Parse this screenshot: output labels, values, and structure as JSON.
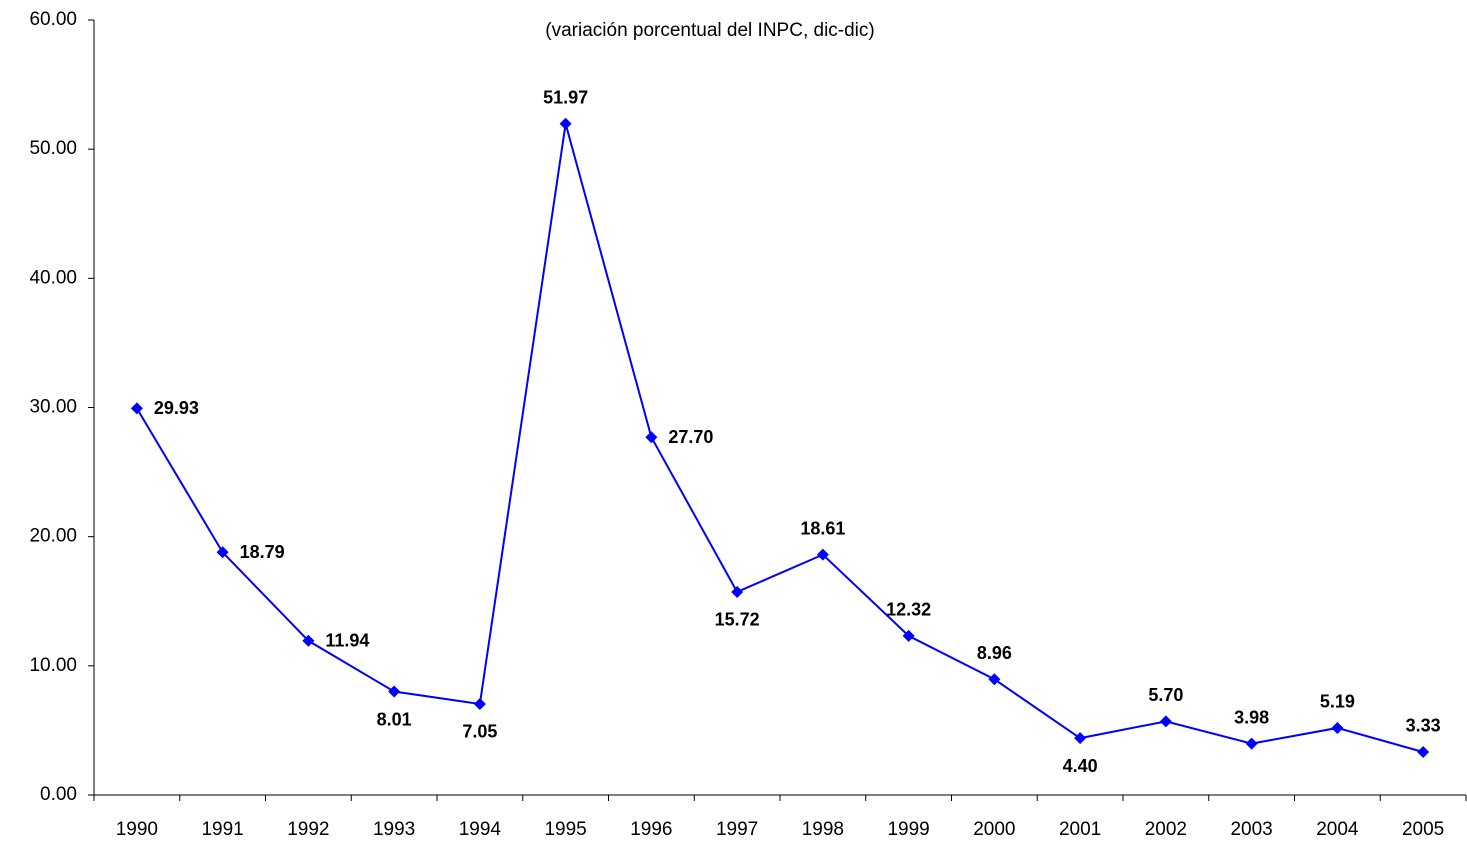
{
  "chart_data": {
    "type": "line",
    "subtitle": "(variación porcentual del INPC, dic-dic)",
    "categories": [
      "1990",
      "1991",
      "1992",
      "1993",
      "1994",
      "1995",
      "1996",
      "1997",
      "1998",
      "1999",
      "2000",
      "2001",
      "2002",
      "2003",
      "2004",
      "2005"
    ],
    "series": [
      {
        "color": "#0000ff",
        "values": [
          29.93,
          18.79,
          11.94,
          8.01,
          7.05,
          51.97,
          27.7,
          15.72,
          18.61,
          12.32,
          8.96,
          4.4,
          5.7,
          3.98,
          5.19,
          3.33
        ],
        "value_labels": [
          "29.93",
          "18.79",
          "11.94",
          "8.01",
          "7.05",
          "51.97",
          "27.70",
          "15.72",
          "18.61",
          "12.32",
          "8.96",
          "4.40",
          "5.70",
          "3.98",
          "5.19",
          "3.33"
        ]
      }
    ],
    "ylim": [
      0,
      60
    ],
    "yticks": [
      {
        "value": 0,
        "label": "0.00"
      },
      {
        "value": 10,
        "label": "10.00"
      },
      {
        "value": 20,
        "label": "20.00"
      },
      {
        "value": 30,
        "label": "30.00"
      },
      {
        "value": 40,
        "label": "40.00"
      },
      {
        "value": 50,
        "label": "50.00"
      },
      {
        "value": 60,
        "label": "60.00"
      }
    ],
    "grid": false
  }
}
